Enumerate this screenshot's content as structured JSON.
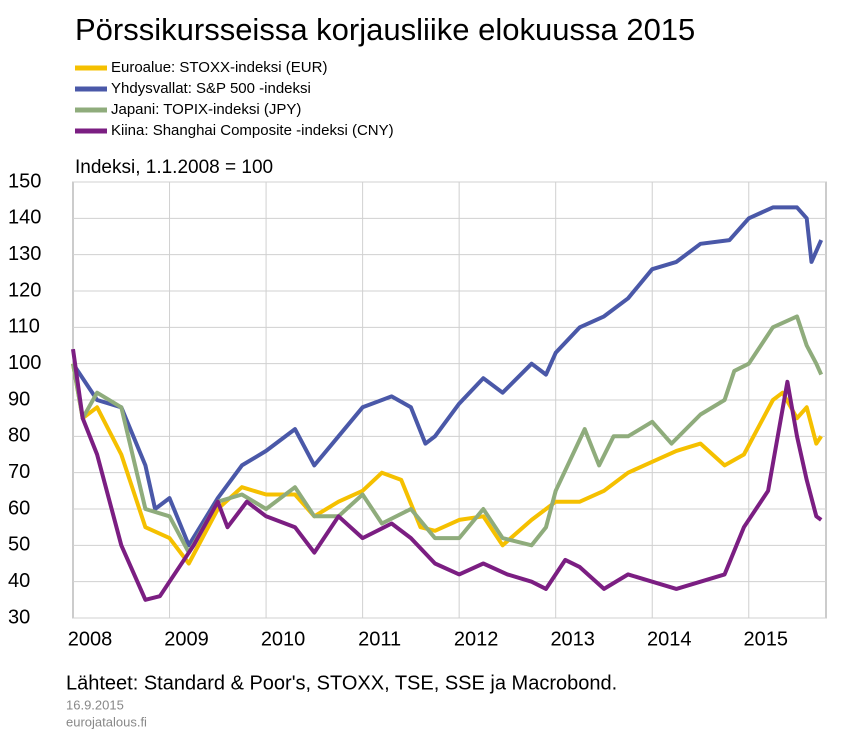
{
  "chart_data": {
    "type": "line",
    "title": "Pörssikursseissa korjausliike elokuussa 2015",
    "ylabel": "Indeksi, 1.1.2008 = 100",
    "source": "Lähteet: Standard & Poor's, STOXX, TSE, SSE ja Macrobond.",
    "date": "16.9.2015",
    "site": "eurojatalous.fi",
    "xlim": [
      2008,
      2015.8
    ],
    "xticks": [
      2008,
      2009,
      2010,
      2011,
      2012,
      2013,
      2014,
      2015
    ],
    "ylim": [
      30,
      150
    ],
    "yticks": [
      30,
      40,
      50,
      60,
      70,
      80,
      90,
      100,
      110,
      120,
      130,
      140,
      150
    ],
    "grid": true,
    "series": [
      {
        "name": "Euroalue: STOXX-indeksi (EUR)",
        "color": "#f5c000",
        "x": [
          2008,
          2008.1,
          2008.25,
          2008.5,
          2008.75,
          2009,
          2009.2,
          2009.5,
          2009.75,
          2010,
          2010.3,
          2010.5,
          2010.75,
          2011,
          2011.2,
          2011.4,
          2011.6,
          2011.75,
          2012,
          2012.25,
          2012.45,
          2012.75,
          2013,
          2013.25,
          2013.5,
          2013.75,
          2014,
          2014.25,
          2014.5,
          2014.75,
          2014.95,
          2015.25,
          2015.35,
          2015.5,
          2015.6,
          2015.7,
          2015.75
        ],
        "values": [
          100,
          85,
          88,
          75,
          55,
          52,
          45,
          60,
          66,
          64,
          64,
          58,
          62,
          65,
          70,
          68,
          55,
          54,
          57,
          58,
          50,
          57,
          62,
          62,
          65,
          70,
          73,
          76,
          78,
          72,
          75,
          90,
          92,
          85,
          88,
          78,
          80
        ]
      },
      {
        "name": "Yhdysvallat: S&P 500 -indeksi",
        "color": "#4a58a8",
        "x": [
          2008,
          2008.25,
          2008.5,
          2008.75,
          2008.85,
          2009,
          2009.2,
          2009.5,
          2009.75,
          2010,
          2010.3,
          2010.5,
          2010.75,
          2011,
          2011.3,
          2011.5,
          2011.65,
          2011.75,
          2012,
          2012.25,
          2012.45,
          2012.75,
          2012.9,
          2013,
          2013.25,
          2013.5,
          2013.75,
          2014,
          2014.25,
          2014.5,
          2014.8,
          2015,
          2015.25,
          2015.5,
          2015.6,
          2015.65,
          2015.75
        ],
        "values": [
          100,
          90,
          88,
          72,
          60,
          63,
          50,
          63,
          72,
          76,
          82,
          72,
          80,
          88,
          91,
          88,
          78,
          80,
          89,
          96,
          92,
          100,
          97,
          103,
          110,
          113,
          118,
          126,
          128,
          133,
          134,
          140,
          143,
          143,
          140,
          128,
          134
        ]
      },
      {
        "name": "Japani: TOPIX-indeksi (JPY)",
        "color": "#8fac7c",
        "x": [
          2008,
          2008.1,
          2008.25,
          2008.5,
          2008.75,
          2009,
          2009.2,
          2009.5,
          2009.75,
          2010,
          2010.3,
          2010.5,
          2010.75,
          2011,
          2011.2,
          2011.5,
          2011.75,
          2012,
          2012.25,
          2012.45,
          2012.75,
          2012.9,
          2013,
          2013.3,
          2013.45,
          2013.6,
          2013.75,
          2014,
          2014.2,
          2014.5,
          2014.75,
          2014.85,
          2015,
          2015.25,
          2015.5,
          2015.6,
          2015.7,
          2015.75
        ],
        "values": [
          100,
          85,
          92,
          88,
          60,
          58,
          48,
          62,
          64,
          60,
          66,
          58,
          58,
          64,
          56,
          60,
          52,
          52,
          60,
          52,
          50,
          55,
          65,
          82,
          72,
          80,
          80,
          84,
          78,
          86,
          90,
          98,
          100,
          110,
          113,
          105,
          100,
          97
        ]
      },
      {
        "name": "Kiina: Shanghai Composite -indeksi (CNY)",
        "color": "#7b1e82",
        "x": [
          2008,
          2008.1,
          2008.25,
          2008.5,
          2008.75,
          2008.9,
          2009,
          2009.25,
          2009.5,
          2009.6,
          2009.8,
          2010,
          2010.3,
          2010.5,
          2010.75,
          2011,
          2011.3,
          2011.5,
          2011.75,
          2012,
          2012.25,
          2012.5,
          2012.75,
          2012.9,
          2013.1,
          2013.25,
          2013.5,
          2013.75,
          2014,
          2014.25,
          2014.5,
          2014.75,
          2014.95,
          2015.2,
          2015.4,
          2015.5,
          2015.6,
          2015.7,
          2015.75
        ],
        "values": [
          104,
          85,
          75,
          50,
          35,
          36,
          40,
          50,
          62,
          55,
          62,
          58,
          55,
          48,
          58,
          52,
          56,
          52,
          45,
          42,
          45,
          42,
          40,
          38,
          46,
          44,
          38,
          42,
          40,
          38,
          40,
          42,
          55,
          65,
          95,
          80,
          68,
          58,
          57
        ]
      }
    ]
  }
}
